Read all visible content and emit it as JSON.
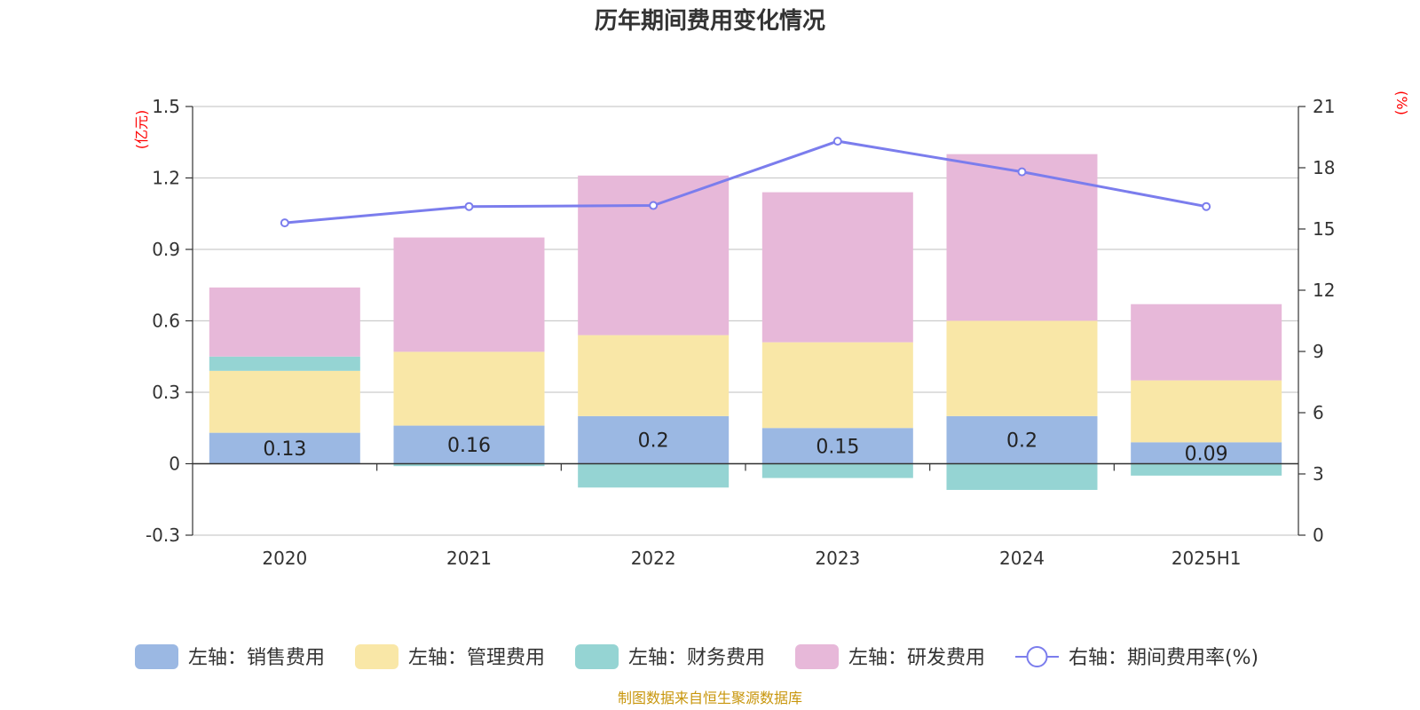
{
  "chart_data": {
    "type": "bar",
    "title": "历年期间费用变化情况",
    "categories": [
      "2020",
      "2021",
      "2022",
      "2023",
      "2024",
      "2025H1"
    ],
    "y_left": {
      "unit": "(亿元)",
      "min": -0.3,
      "max": 1.5,
      "ticks": [
        "1.5",
        "1.2",
        "0.9",
        "0.6",
        "0.3",
        "0",
        "-0.3"
      ]
    },
    "y_right": {
      "unit": "(%)",
      "min": 0,
      "max": 21,
      "ticks": [
        "21",
        "18",
        "15",
        "12",
        "9",
        "6",
        "3",
        "0"
      ]
    },
    "series": [
      {
        "name": "左轴：销售费用",
        "type": "bar",
        "color": "#9bb8e3",
        "values": [
          0.13,
          0.16,
          0.2,
          0.15,
          0.2,
          0.09
        ],
        "labels": [
          "0.13",
          "0.16",
          "0.2",
          "0.15",
          "0.2",
          "0.09"
        ]
      },
      {
        "name": "左轴：管理费用",
        "type": "bar",
        "color": "#f9e7a7",
        "values": [
          0.26,
          0.31,
          0.34,
          0.36,
          0.4,
          0.26
        ]
      },
      {
        "name": "左轴：财务费用",
        "type": "bar",
        "color": "#95d4d3",
        "values": [
          0.06,
          -0.01,
          -0.1,
          -0.06,
          -0.11,
          -0.05
        ]
      },
      {
        "name": "左轴：研发费用",
        "type": "bar",
        "color": "#e7b8d9",
        "values": [
          0.29,
          0.48,
          0.67,
          0.63,
          0.7,
          0.32
        ]
      },
      {
        "name": "右轴：期间费用率(%)",
        "type": "line",
        "color": "#7b7ded",
        "values": [
          15.3,
          16.1,
          16.15,
          19.3,
          17.8,
          16.1
        ]
      }
    ],
    "grid": true,
    "legend_position": "bottom"
  },
  "source_note": "制图数据来自恒生聚源数据库"
}
